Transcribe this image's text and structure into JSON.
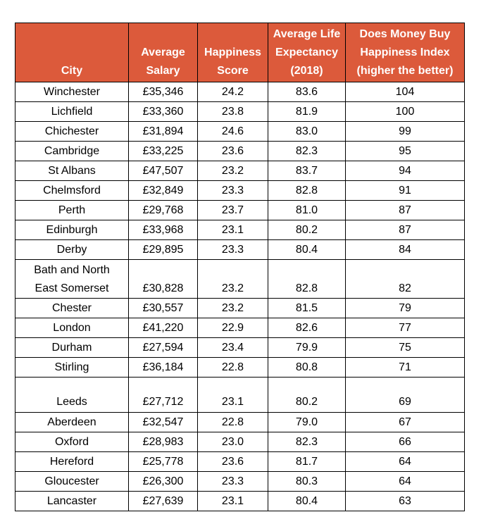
{
  "table": {
    "header": [
      "City",
      "Average Salary",
      "Happiness Score",
      "Average Life Expectancy (2018)",
      "Does Money Buy Happiness Index (higher the better)"
    ],
    "rows": [
      [
        "Winchester",
        "£35,346",
        "24.2",
        "83.6",
        "104"
      ],
      [
        "Lichfield",
        "£33,360",
        "23.8",
        "81.9",
        "100"
      ],
      [
        "Chichester",
        "£31,894",
        "24.6",
        "83.0",
        "99"
      ],
      [
        "Cambridge",
        "£33,225",
        "23.6",
        "82.3",
        "95"
      ],
      [
        "St Albans",
        "£47,507",
        "23.2",
        "83.7",
        "94"
      ],
      [
        "Chelmsford",
        "£32,849",
        "23.3",
        "82.8",
        "91"
      ],
      [
        "Perth",
        "£29,768",
        "23.7",
        "81.0",
        "87"
      ],
      [
        "Edinburgh",
        "£33,968",
        "23.1",
        "80.2",
        "87"
      ],
      [
        "Derby",
        "£29,895",
        "23.3",
        "80.4",
        "84"
      ],
      [
        "Bath and North East Somerset",
        "£30,828",
        "23.2",
        "82.8",
        "82"
      ],
      [
        "Chester",
        "£30,557",
        "23.2",
        "81.5",
        "79"
      ],
      [
        "London",
        "£41,220",
        "22.9",
        "82.6",
        "77"
      ],
      [
        "Durham",
        "£27,594",
        "23.4",
        "79.9",
        "75"
      ],
      [
        "Stirling",
        "£36,184",
        "22.8",
        "80.8",
        "71"
      ],
      [
        "Leeds",
        "£27,712",
        "23.1",
        "80.2",
        "69"
      ],
      [
        "Aberdeen",
        "£32,547",
        "22.8",
        "79.0",
        "67"
      ],
      [
        "Oxford",
        "£28,983",
        "23.0",
        "82.3",
        "66"
      ],
      [
        "Hereford",
        "£25,778",
        "23.6",
        "81.7",
        "64"
      ],
      [
        "Gloucester",
        "£26,300",
        "23.3",
        "80.3",
        "64"
      ],
      [
        "Lancaster",
        "£27,639",
        "23.1",
        "80.4",
        "63"
      ]
    ]
  }
}
